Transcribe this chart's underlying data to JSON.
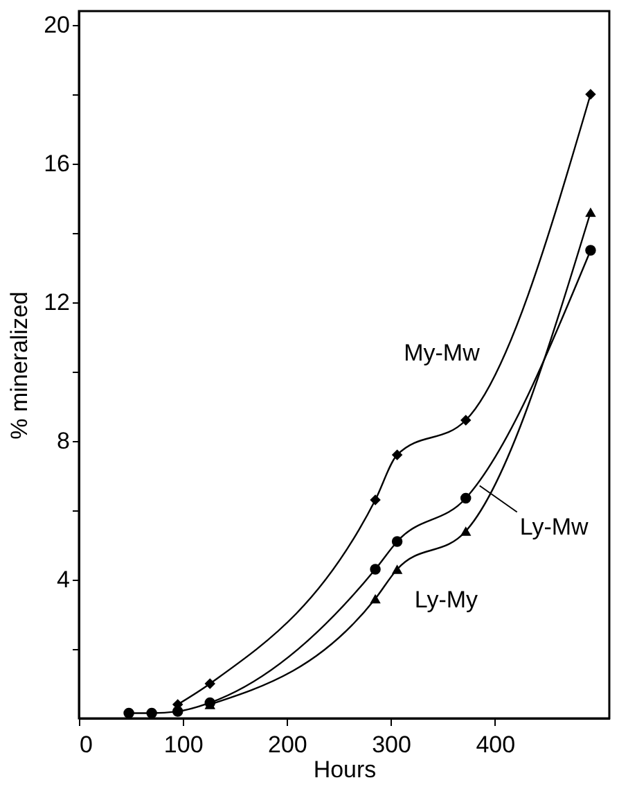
{
  "chart_data": {
    "type": "line",
    "xlabel": "Hours",
    "ylabel": "% mineralized",
    "xlim": [
      0,
      510
    ],
    "xticks": [
      0,
      100,
      200,
      300,
      400
    ],
    "ylim": [
      0,
      20.4
    ],
    "yticks": [
      {
        "value": 2,
        "label": null
      },
      4,
      {
        "value": 6,
        "label": null
      },
      8,
      {
        "value": 10,
        "label": null
      },
      12,
      {
        "value": 14,
        "label": null
      },
      16,
      {
        "value": 18,
        "label": null
      },
      20
    ],
    "line_style": "solid",
    "series": [
      {
        "name": "My-Mw",
        "color": "#000000",
        "marker": "diamond",
        "x": [
          95,
          126,
          285,
          306,
          372,
          492
        ],
        "values": [
          0.4,
          1.0,
          6.3,
          7.6,
          8.6,
          18.0
        ]
      },
      {
        "name": "Ly-Mw",
        "color": "#000000",
        "marker": "circle",
        "x": [
          48,
          70,
          95,
          126,
          285,
          306,
          372,
          492
        ],
        "values": [
          0.15,
          0.15,
          0.2,
          0.45,
          4.3,
          5.1,
          6.35,
          13.5
        ]
      },
      {
        "name": "Ly-My",
        "color": "#000000",
        "marker": "triangle",
        "x": [
          126,
          285,
          306,
          372,
          492
        ],
        "values": [
          0.4,
          3.45,
          4.3,
          5.4,
          14.6
        ]
      }
    ]
  }
}
